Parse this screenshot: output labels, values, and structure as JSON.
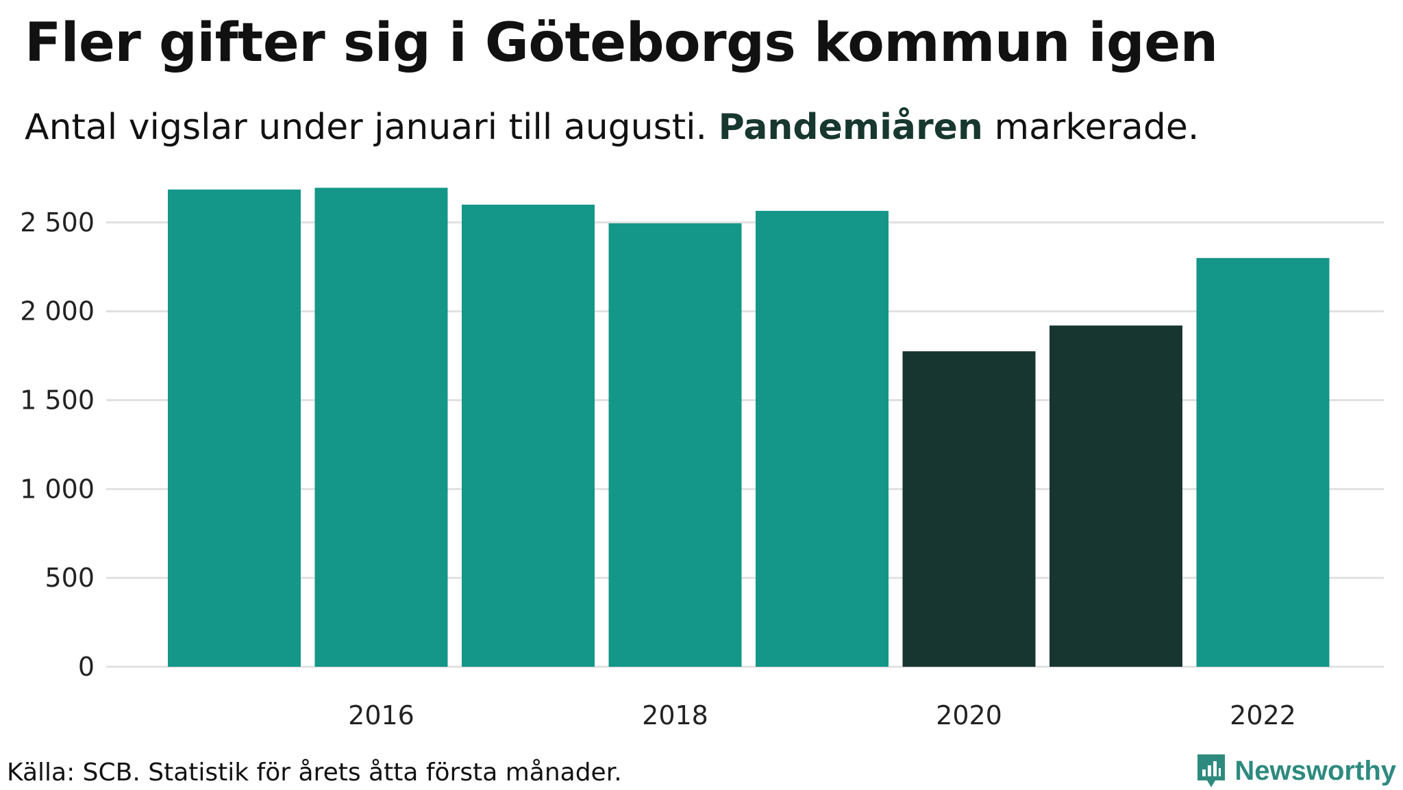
{
  "header": {
    "title": "Fler gifter sig i Göteborgs kommun igen",
    "subtitle_before": "Antal vigslar under januari till augusti.",
    "subtitle_highlight": "Pandemiåren",
    "subtitle_after": "markerade."
  },
  "footer": {
    "source": "Källa: SCB. Statistik för årets åtta första månader."
  },
  "brand": {
    "name": "Newsworthy",
    "icon": "bar-chart-speech-bubble-icon",
    "color": "#2e8a7e"
  },
  "colors": {
    "normal": "#149688",
    "pandemic": "#183630",
    "grid": "#e0e0e0"
  },
  "chart_data": {
    "type": "bar",
    "x": [
      2015,
      2016,
      2017,
      2018,
      2019,
      2020,
      2021,
      2022
    ],
    "values": [
      2685,
      2695,
      2600,
      2495,
      2565,
      1775,
      1920,
      2300
    ],
    "highlight": [
      false,
      false,
      false,
      false,
      false,
      true,
      true,
      false
    ],
    "xticks": [
      "2016",
      "2018",
      "2020",
      "2022"
    ],
    "xtick_values": [
      2016,
      2018,
      2020,
      2022
    ],
    "yticks": [
      "0",
      "500",
      "1 000",
      "1 500",
      "2 000",
      "2 500"
    ],
    "ytick_values": [
      0,
      500,
      1000,
      1500,
      2000,
      2500
    ],
    "ylim": [
      0,
      2750
    ],
    "grid": true,
    "legend": "none"
  }
}
